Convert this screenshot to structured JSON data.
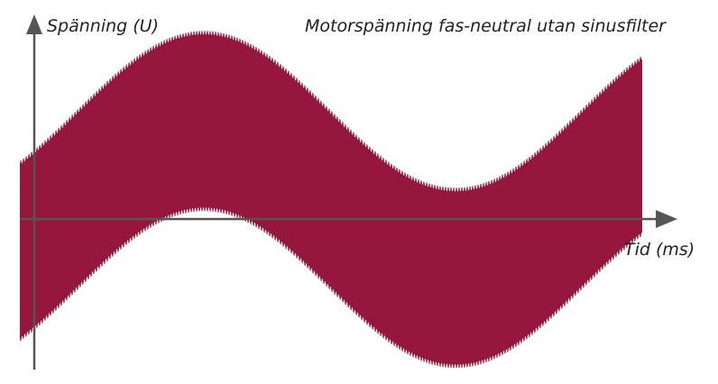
{
  "chart_data": {
    "type": "area",
    "title": "Motorspänning fas-neutral utan sinusfilter",
    "xlabel": "Tid (ms)",
    "ylabel": "Spänning (U)",
    "grid": false,
    "legend": "none",
    "series": [
      {
        "values_description": "",
        "upper": {
          "offset": 1.4,
          "amplitude": 1.0,
          "phase_deg": 0
        },
        "lower": {
          "offset": -0.9,
          "amplitude": 1.0,
          "phase_deg": 0
        },
        "x_range_periods": [
          -0.115,
          1.12
        ]
      }
    ],
    "ylim": [
      -2.6,
      2.9
    ],
    "colors": {
      "band": "#96173e",
      "axis": "#555555",
      "text": "#222222"
    }
  }
}
